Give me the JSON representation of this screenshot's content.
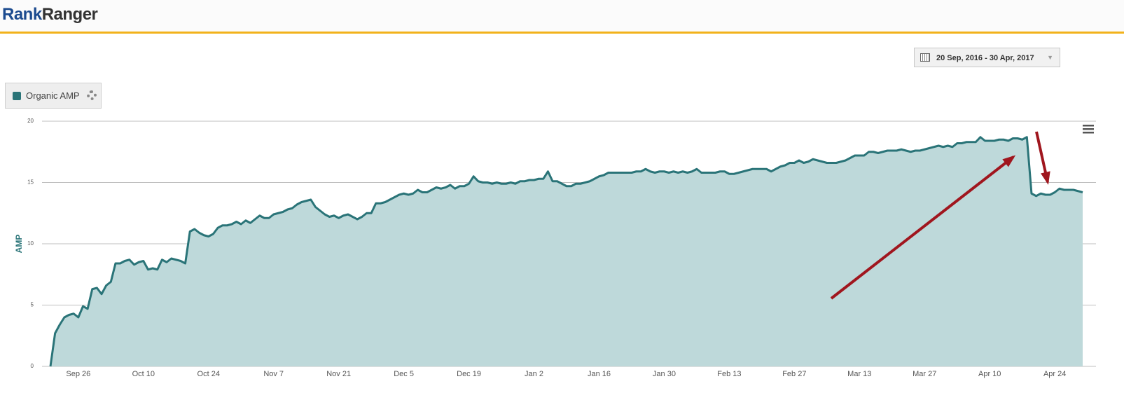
{
  "header": {
    "logo_first": "Rank",
    "logo_second": "Ranger"
  },
  "date_range": "20 Sep, 2016 - 30 Apr, 2017",
  "chart_data": {
    "type": "area",
    "y_label": "AMP",
    "grid": true,
    "ylim": [
      0,
      20
    ],
    "yticks": [
      0,
      5,
      10,
      15,
      20
    ],
    "fill_color": "#bed9da",
    "categories": [
      null,
      null,
      null,
      null,
      null,
      null,
      "Sep 26",
      null,
      null,
      null,
      null,
      null,
      null,
      null,
      null,
      null,
      null,
      null,
      null,
      null,
      "Oct 10",
      null,
      null,
      null,
      null,
      null,
      null,
      null,
      null,
      null,
      null,
      null,
      null,
      null,
      "Oct 24",
      null,
      null,
      null,
      null,
      null,
      null,
      null,
      null,
      null,
      null,
      null,
      null,
      null,
      "Nov 7",
      null,
      null,
      null,
      null,
      null,
      null,
      null,
      null,
      null,
      null,
      null,
      null,
      null,
      "Nov 21",
      null,
      null,
      null,
      null,
      null,
      null,
      null,
      null,
      null,
      null,
      null,
      null,
      null,
      "Dec 5",
      null,
      null,
      null,
      null,
      null,
      null,
      null,
      null,
      null,
      null,
      null,
      null,
      null,
      "Dec 19",
      null,
      null,
      null,
      null,
      null,
      null,
      null,
      null,
      null,
      null,
      null,
      null,
      null,
      "Jan 2",
      null,
      null,
      null,
      null,
      null,
      null,
      null,
      null,
      null,
      null,
      null,
      null,
      null,
      "Jan 16",
      null,
      null,
      null,
      null,
      null,
      null,
      null,
      null,
      null,
      null,
      null,
      null,
      null,
      "Jan 30",
      null,
      null,
      null,
      null,
      null,
      null,
      null,
      null,
      null,
      null,
      null,
      null,
      null,
      "Feb 13",
      null,
      null,
      null,
      null,
      null,
      null,
      null,
      null,
      null,
      null,
      null,
      null,
      null,
      "Feb 27",
      null,
      null,
      null,
      null,
      null,
      null,
      null,
      null,
      null,
      null,
      null,
      null,
      null,
      "Mar 13",
      null,
      null,
      null,
      null,
      null,
      null,
      null,
      null,
      null,
      null,
      null,
      null,
      null,
      "Mar 27",
      null,
      null,
      null,
      null,
      null,
      null,
      null,
      null,
      null,
      null,
      null,
      null,
      null,
      "Apr 10",
      null,
      null,
      null,
      null,
      null,
      null,
      null,
      null,
      null,
      null,
      null,
      null,
      null,
      "Apr 24",
      null,
      null,
      null,
      null,
      null,
      null
    ],
    "series": [
      {
        "name": "Organic AMP",
        "color": "#2a7478",
        "values": [
          0,
          2.7,
          3.4,
          4.0,
          4.2,
          4.3,
          4.0,
          4.9,
          4.7,
          6.3,
          6.4,
          5.9,
          6.6,
          6.9,
          8.4,
          8.4,
          8.6,
          8.7,
          8.3,
          8.5,
          8.6,
          7.9,
          8.0,
          7.9,
          8.7,
          8.5,
          8.8,
          8.7,
          8.6,
          8.4,
          11.0,
          11.2,
          10.9,
          10.7,
          10.6,
          10.8,
          11.3,
          11.5,
          11.5,
          11.6,
          11.8,
          11.6,
          11.9,
          11.7,
          12.0,
          12.3,
          12.1,
          12.1,
          12.4,
          12.5,
          12.6,
          12.8,
          12.9,
          13.2,
          13.4,
          13.5,
          13.6,
          13.0,
          12.7,
          12.4,
          12.2,
          12.3,
          12.1,
          12.3,
          12.4,
          12.2,
          12.0,
          12.2,
          12.5,
          12.5,
          13.3,
          13.3,
          13.4,
          13.6,
          13.8,
          14.0,
          14.1,
          14.0,
          14.1,
          14.4,
          14.2,
          14.2,
          14.4,
          14.6,
          14.5,
          14.6,
          14.8,
          14.5,
          14.7,
          14.7,
          14.9,
          15.5,
          15.1,
          15.0,
          15.0,
          14.9,
          15.0,
          14.9,
          14.9,
          15.0,
          14.9,
          15.1,
          15.1,
          15.2,
          15.2,
          15.3,
          15.3,
          15.9,
          15.1,
          15.1,
          14.9,
          14.7,
          14.7,
          14.9,
          14.9,
          15.0,
          15.1,
          15.3,
          15.5,
          15.6,
          15.8,
          15.8,
          15.8,
          15.8,
          15.8,
          15.8,
          15.9,
          15.9,
          16.1,
          15.9,
          15.8,
          15.9,
          15.9,
          15.8,
          15.9,
          15.8,
          15.9,
          15.8,
          15.9,
          16.1,
          15.8,
          15.8,
          15.8,
          15.8,
          15.9,
          15.9,
          15.7,
          15.7,
          15.8,
          15.9,
          16.0,
          16.1,
          16.1,
          16.1,
          16.1,
          15.9,
          16.1,
          16.3,
          16.4,
          16.6,
          16.6,
          16.8,
          16.6,
          16.7,
          16.9,
          16.8,
          16.7,
          16.6,
          16.6,
          16.6,
          16.7,
          16.8,
          17.0,
          17.2,
          17.2,
          17.2,
          17.5,
          17.5,
          17.4,
          17.5,
          17.6,
          17.6,
          17.6,
          17.7,
          17.6,
          17.5,
          17.6,
          17.6,
          17.7,
          17.8,
          17.9,
          18.0,
          17.9,
          18.0,
          17.9,
          18.2,
          18.2,
          18.3,
          18.3,
          18.3,
          18.7,
          18.4,
          18.4,
          18.4,
          18.5,
          18.5,
          18.4,
          18.6,
          18.6,
          18.5,
          18.7,
          14.1,
          13.9,
          14.1,
          14.0,
          14.0,
          14.2,
          14.5,
          14.4,
          14.4,
          14.4,
          14.3,
          14.2
        ]
      }
    ]
  }
}
